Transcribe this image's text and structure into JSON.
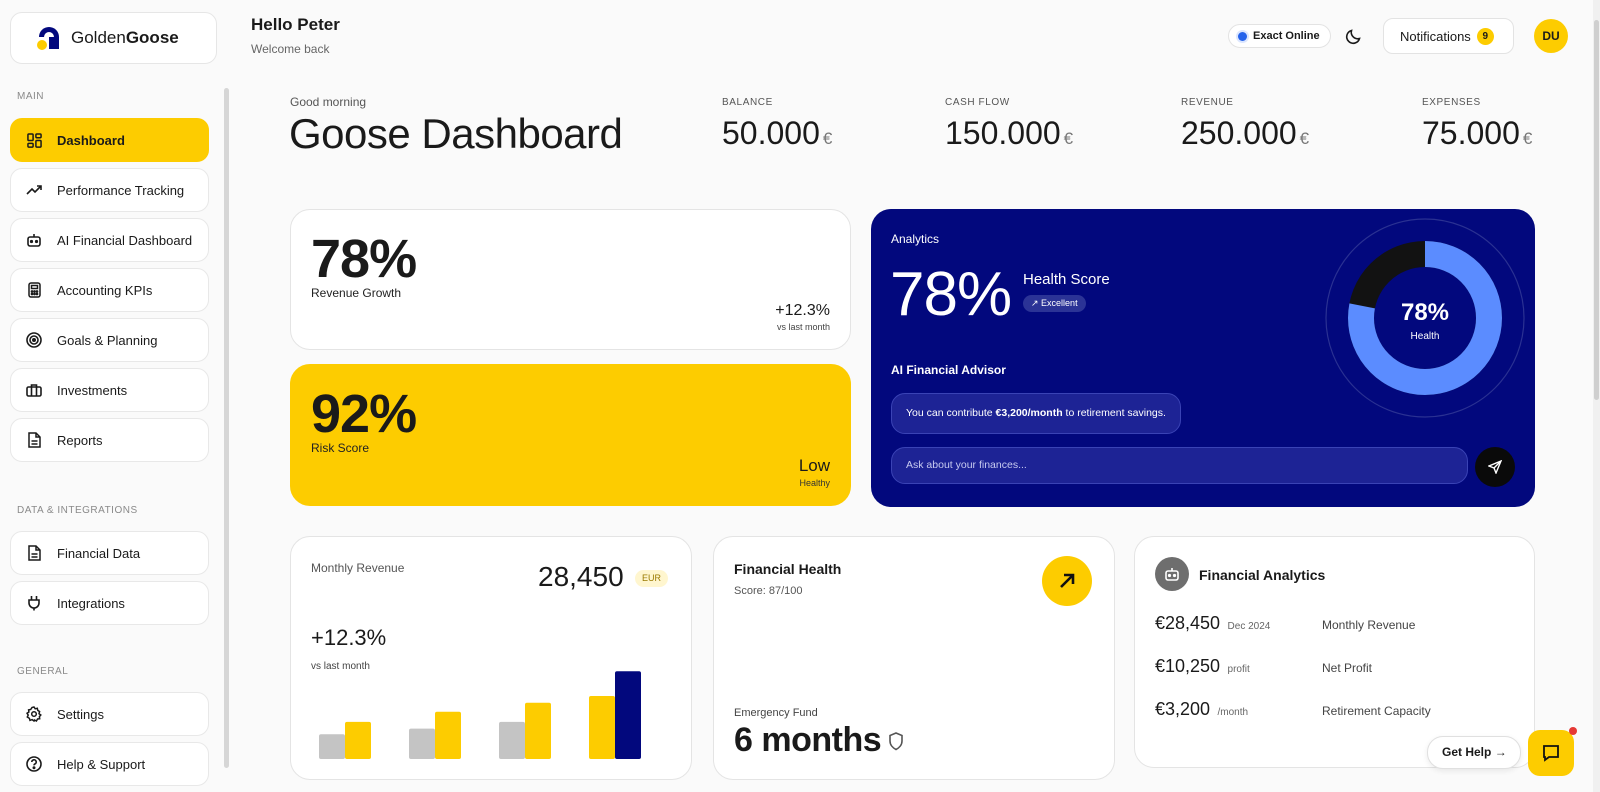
{
  "brand": {
    "name_light": "Golden",
    "name_bold": "Goose"
  },
  "sidebar": {
    "sections": {
      "main": "MAIN",
      "data": "DATA & INTEGRATIONS",
      "general": "GENERAL"
    },
    "main_items": [
      {
        "label": "Dashboard",
        "icon": "grid-icon"
      },
      {
        "label": "Performance Tracking",
        "icon": "trend-icon"
      },
      {
        "label": "AI Financial Dashboard",
        "icon": "robot-icon"
      },
      {
        "label": "Accounting KPIs",
        "icon": "calculator-icon"
      },
      {
        "label": "Goals & Planning",
        "icon": "target-icon"
      },
      {
        "label": "Investments",
        "icon": "briefcase-icon"
      },
      {
        "label": "Reports",
        "icon": "document-icon"
      }
    ],
    "data_items": [
      {
        "label": "Financial Data",
        "icon": "document-icon"
      },
      {
        "label": "Integrations",
        "icon": "plug-icon"
      }
    ],
    "general_items": [
      {
        "label": "Settings",
        "icon": "gear-icon"
      },
      {
        "label": "Help & Support",
        "icon": "help-icon"
      }
    ]
  },
  "header": {
    "greeting": "Hello Peter",
    "subtitle": "Welcome back",
    "integration": "Exact Online",
    "notifications_label": "Notifications",
    "notifications_count": "9",
    "avatar_initials": "DU"
  },
  "page": {
    "greet": "Good morning",
    "title": "Goose Dashboard"
  },
  "kpis": [
    {
      "label": "BALANCE",
      "value": "50.000",
      "currency": "€"
    },
    {
      "label": "CASH FLOW",
      "value": "150.000",
      "currency": "€"
    },
    {
      "label": "REVENUE",
      "value": "250.000",
      "currency": "€"
    },
    {
      "label": "EXPENSES",
      "value": "75.000",
      "currency": "€"
    }
  ],
  "revenue_growth": {
    "value": "78%",
    "label": "Revenue Growth",
    "change": "+12.3%",
    "change_note": "vs last month"
  },
  "risk_score": {
    "value": "92%",
    "label": "Risk Score",
    "level": "Low",
    "level_note": "Healthy"
  },
  "analytics": {
    "label": "Analytics",
    "value": "78%",
    "health_label": "Health Score",
    "badge": "Excellent",
    "advisor_title": "AI Financial Advisor",
    "advisor_msg_pre": "You can contribute ",
    "advisor_msg_bold": "€3,200/month",
    "advisor_msg_post": " to retirement savings.",
    "ask_placeholder": "Ask about your finances...",
    "donut_value": "78%",
    "donut_label": "Health",
    "donut_fraction": 0.78,
    "colors": {
      "fill": "#5b8cff",
      "rest": "#121212",
      "bg": "#02087d"
    }
  },
  "monthly_revenue": {
    "title": "Monthly Revenue",
    "value": "28,450",
    "currency": "EUR",
    "change": "+12.3%",
    "change_note": "vs last month"
  },
  "chart_data": {
    "type": "bar",
    "categories": [
      "",
      "",
      "",
      ""
    ],
    "series": [
      {
        "values": [
          22,
          27,
          33,
          0
        ],
        "color": "#c4c4c4"
      },
      {
        "values": [
          33,
          42,
          50,
          56
        ],
        "color": "#fdcc00"
      },
      {
        "values": [
          0,
          0,
          0,
          78
        ],
        "color": "#02087d"
      }
    ],
    "ylim": [
      0,
      80
    ],
    "grid": false
  },
  "financial_health": {
    "title": "Financial Health",
    "score": "Score: 87/100",
    "fund_label": "Emergency Fund",
    "fund_value": "6 months"
  },
  "financial_analytics": {
    "title": "Financial Analytics",
    "rows": [
      {
        "amount": "€28,450",
        "note": "Dec 2024",
        "label": "Monthly Revenue"
      },
      {
        "amount": "€10,250",
        "note": "profit",
        "label": "Net Profit"
      },
      {
        "amount": "€3,200",
        "note": "/month",
        "label": "Retirement Capacity"
      }
    ]
  },
  "help": {
    "label": "Get Help",
    "arrow": "→"
  }
}
